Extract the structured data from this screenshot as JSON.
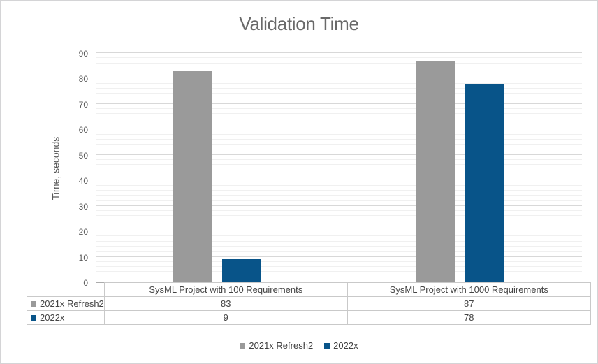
{
  "chart_data": {
    "type": "bar",
    "title": "Validation Time",
    "ylabel": "Time, seconds",
    "xlabel": "",
    "categories": [
      "SysML Project with 100 Requirements",
      "SysML Project with 1000 Requirements"
    ],
    "series": [
      {
        "name": "2021x Refresh2",
        "color": "#9A9A9A",
        "values": [
          83,
          87
        ]
      },
      {
        "name": "2022x",
        "color": "#085489",
        "values": [
          9,
          78
        ]
      }
    ],
    "ylim": [
      0,
      90
    ],
    "y_major_ticks": [
      0,
      10,
      20,
      30,
      40,
      50,
      60,
      70,
      80,
      90
    ],
    "y_major_unit": 10,
    "y_minor_unit": 2,
    "grid": "horizontal-major-and-minor",
    "legend_position": "bottom",
    "data_table_shown": true
  }
}
